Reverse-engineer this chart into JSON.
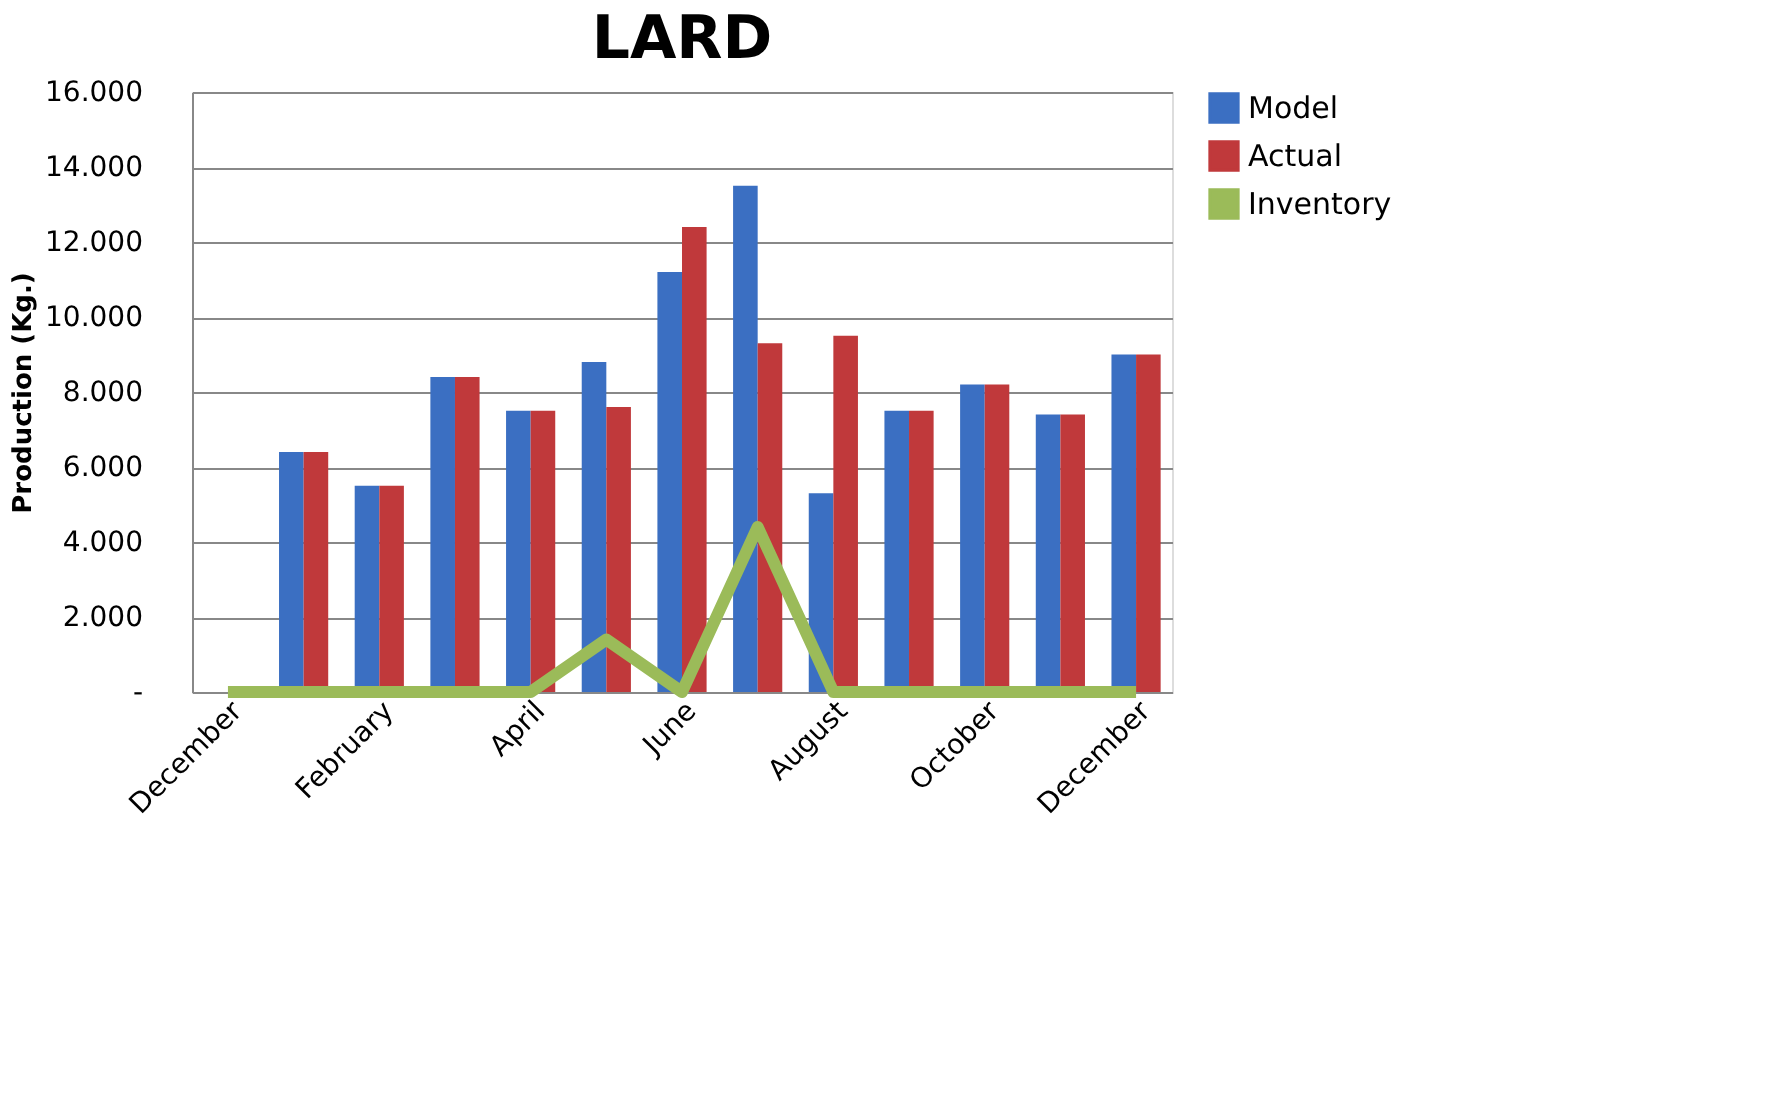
{
  "chart_data": {
    "type": "bar",
    "title": "LARD",
    "ylabel": "Production (Kg.)",
    "categories": [
      "December",
      null,
      "February",
      null,
      "April",
      null,
      "June",
      null,
      "August",
      null,
      "October",
      null,
      "December"
    ],
    "series": [
      {
        "name": "Model",
        "color": "#3b6fc2",
        "values": [
          0,
          6400,
          5500,
          8400,
          7500,
          8800,
          11200,
          13500,
          5300,
          7500,
          8200,
          7400,
          9000
        ]
      },
      {
        "name": "Actual",
        "color": "#c0393b",
        "values": [
          0,
          6400,
          5500,
          8400,
          7500,
          7600,
          12400,
          9300,
          9500,
          7500,
          8200,
          7400,
          9000
        ]
      },
      {
        "name": "Inventory",
        "type": "line",
        "color": "#9bbb59",
        "line_style": "solid",
        "values": [
          0,
          0,
          0,
          0,
          0,
          1400,
          0,
          4400,
          0,
          0,
          0,
          0,
          0
        ]
      }
    ],
    "ylim": [
      0,
      16000
    ],
    "yticks": [
      {
        "value": 0,
        "label": "-"
      },
      {
        "value": 2000,
        "label": "2.000"
      },
      {
        "value": 4000,
        "label": "4.000"
      },
      {
        "value": 6000,
        "label": "6.000"
      },
      {
        "value": 8000,
        "label": "8.000"
      },
      {
        "value": 10000,
        "label": "10.000"
      },
      {
        "value": 12000,
        "label": "12.000"
      },
      {
        "value": 14000,
        "label": "14.000"
      },
      {
        "value": 16000,
        "label": "16.000"
      }
    ],
    "grid": "y",
    "legend": "right",
    "marker": "none"
  }
}
